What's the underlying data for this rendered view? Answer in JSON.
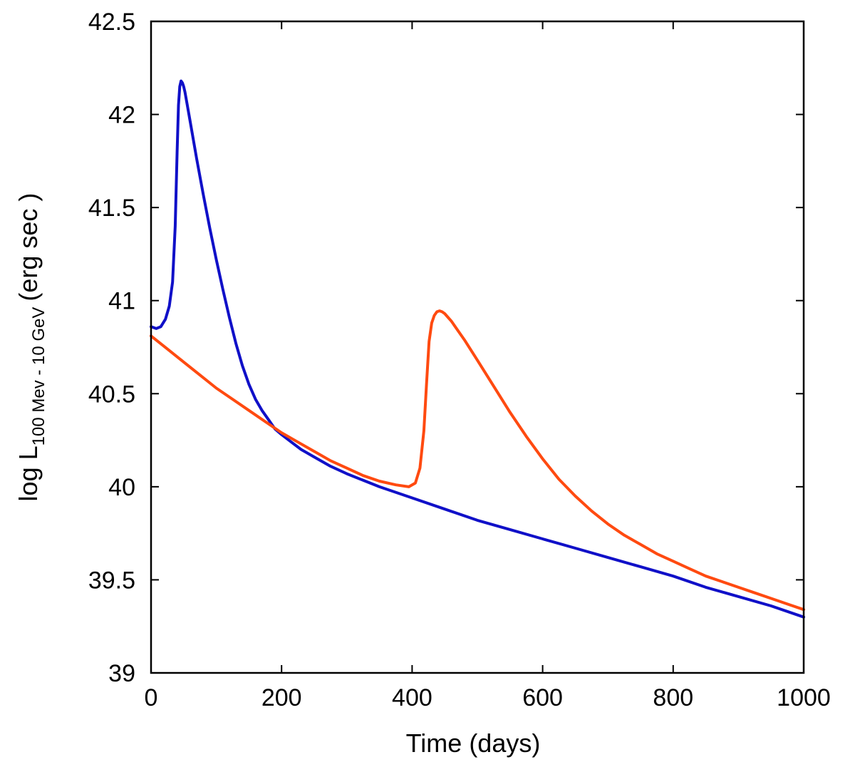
{
  "chart_data": {
    "type": "line",
    "title": "",
    "xlabel": "Time (days)",
    "ylabel": {
      "main": "log L",
      "subscript": "100 Mev - 10 GeV",
      "unit": "(erg sec   )"
    },
    "xlim": [
      0,
      1000
    ],
    "ylim": [
      39,
      42.5
    ],
    "xticks": [
      0,
      200,
      400,
      600,
      800,
      1000
    ],
    "yticks": [
      39,
      39.5,
      40,
      40.5,
      41,
      41.5,
      42,
      42.5
    ],
    "grid": false,
    "legend": "none",
    "series": [
      {
        "color": "#1010c8",
        "x": [
          0,
          8,
          15,
          22,
          28,
          33,
          37,
          40,
          42,
          44,
          46,
          48,
          50,
          52,
          55,
          60,
          70,
          80,
          90,
          100,
          110,
          120,
          130,
          140,
          150,
          160,
          170,
          180,
          190,
          200,
          215,
          230,
          250,
          275,
          300,
          350,
          400,
          450,
          500,
          550,
          600,
          650,
          700,
          750,
          800,
          850,
          900,
          950,
          1000
        ],
        "y": [
          40.86,
          40.85,
          40.86,
          40.9,
          40.97,
          41.1,
          41.4,
          41.8,
          42.05,
          42.15,
          42.18,
          42.17,
          42.15,
          42.12,
          42.06,
          41.96,
          41.76,
          41.57,
          41.39,
          41.22,
          41.06,
          40.91,
          40.77,
          40.65,
          40.55,
          40.47,
          40.41,
          40.36,
          40.31,
          40.28,
          40.24,
          40.2,
          40.16,
          40.11,
          40.07,
          40.0,
          39.94,
          39.88,
          39.82,
          39.77,
          39.72,
          39.67,
          39.62,
          39.57,
          39.52,
          39.46,
          39.41,
          39.36,
          39.3
        ]
      },
      {
        "color": "#ff4a10",
        "x": [
          0,
          25,
          50,
          75,
          100,
          125,
          150,
          175,
          200,
          225,
          250,
          275,
          300,
          325,
          350,
          375,
          395,
          405,
          412,
          418,
          422,
          426,
          430,
          434,
          438,
          442,
          446,
          450,
          460,
          470,
          480,
          500,
          525,
          550,
          575,
          600,
          625,
          650,
          675,
          700,
          725,
          750,
          775,
          800,
          825,
          850,
          875,
          900,
          925,
          950,
          975,
          1000
        ],
        "y": [
          40.81,
          40.74,
          40.67,
          40.6,
          40.53,
          40.47,
          40.41,
          40.35,
          40.29,
          40.24,
          40.19,
          40.14,
          40.1,
          40.06,
          40.03,
          40.01,
          40.0,
          40.02,
          40.1,
          40.3,
          40.55,
          40.78,
          40.88,
          40.92,
          40.94,
          40.945,
          40.94,
          40.93,
          40.89,
          40.84,
          40.79,
          40.68,
          40.54,
          40.4,
          40.27,
          40.15,
          40.04,
          39.95,
          39.87,
          39.8,
          39.74,
          39.69,
          39.64,
          39.6,
          39.56,
          39.52,
          39.49,
          39.46,
          39.43,
          39.4,
          39.37,
          39.34
        ]
      }
    ]
  }
}
